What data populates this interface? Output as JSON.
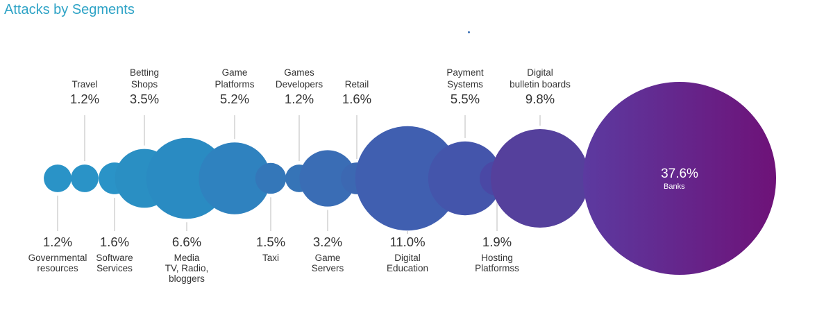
{
  "chart_data": {
    "type": "bubble",
    "title": "Attacks by Segments",
    "unit": "%",
    "points": [
      {
        "label": "Governmental\nresources",
        "value": 1.2,
        "display": "1.2%",
        "color": "#2a93c7"
      },
      {
        "label": "Travel",
        "value": 1.2,
        "display": "1.2%",
        "color": "#2a93c7"
      },
      {
        "label": "Software\nServices",
        "value": 1.6,
        "display": "1.6%",
        "color": "#2a93c7"
      },
      {
        "label": "Betting\nShops",
        "value": 3.5,
        "display": "3.5%",
        "color": "#2a8fc3"
      },
      {
        "label": "Media\nTV, Radio,\nbloggers",
        "value": 6.6,
        "display": "6.6%",
        "color": "#2a8bc2"
      },
      {
        "label": "Game\nPlatforms",
        "value": 5.2,
        "display": "5.2%",
        "color": "#2f82bf"
      },
      {
        "label": "Taxi",
        "value": 1.5,
        "display": "1.5%",
        "color": "#3477b9"
      },
      {
        "label": "Games\nDevelopers",
        "value": 1.2,
        "display": "1.2%",
        "color": "#3674b7"
      },
      {
        "label": "Game\nServers",
        "value": 3.2,
        "display": "3.2%",
        "color": "#3a6db5"
      },
      {
        "label": "Retail",
        "value": 1.6,
        "display": "1.6%",
        "color": "#3c68b2"
      },
      {
        "label": "Digital\nEducation",
        "value": 11.0,
        "display": "11.0%",
        "color": "#405fb0"
      },
      {
        "label": "Payment\nSystems",
        "value": 5.5,
        "display": "5.5%",
        "color": "#4455ab"
      },
      {
        "label": "Hosting\nPlatformss",
        "value": 1.9,
        "display": "1.9%",
        "color": "#4a48a5"
      },
      {
        "label": "Digital\nbulletin boards",
        "value": 9.8,
        "display": "9.8%",
        "color": "#55409c"
      },
      {
        "label": "Banks",
        "value": 37.6,
        "display": "37.6%",
        "color": "#6a1f86"
      }
    ]
  }
}
